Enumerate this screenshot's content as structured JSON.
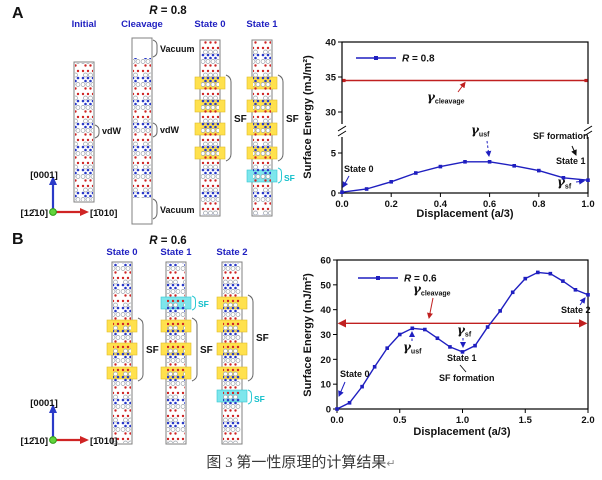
{
  "colors": {
    "accent_blue": "#1f1fc0",
    "accent_red": "#c02020",
    "band_yellow": "#ffe14d",
    "band_cyan": "#7de6ec",
    "atom_red": "#cf2424",
    "atom_blue": "#2a3ac8"
  },
  "panel_a": {
    "label": "A",
    "title": {
      "var": "R",
      "eq": " = 0.8"
    },
    "columns": [
      {
        "name": "Initial"
      },
      {
        "name": "Cleavage"
      },
      {
        "name": "State 0"
      },
      {
        "name": "State 1"
      }
    ],
    "labels": {
      "vacuum_top": "Vacuum",
      "vacuum_bottom": "Vacuum",
      "vdw_initial": "vdW",
      "vdw_cleavage": "vdW",
      "sf_state0": "SF",
      "sf_state1": "SF",
      "sf_basal_state1": "SF"
    },
    "axes": {
      "vertical": "[0001]",
      "horizontal": "[1̄010]",
      "normal": "[12̄10]"
    }
  },
  "panel_b": {
    "label": "B",
    "title": {
      "var": "R",
      "eq": " = 0.6"
    },
    "columns": [
      {
        "name": "State 0"
      },
      {
        "name": "State 1"
      },
      {
        "name": "State 2"
      }
    ],
    "labels": {
      "sf_state0": "SF",
      "sf_state1": "SF",
      "sf_basal_state1": "SF",
      "sf_state2": "SF",
      "sf_basal_state2": "SF"
    },
    "axes": {
      "vertical": "[0001]",
      "horizontal": "[1̄010]",
      "normal": "[12̄10]"
    }
  },
  "caption": {
    "text": "图 3 第一性原理的计算结果",
    "mark": "↵"
  },
  "chart_data": [
    {
      "id": "chartA",
      "type": "line",
      "legend": {
        "var": "R",
        "eq": " = 0.8"
      },
      "xlabel": "Displacement (a/3)",
      "ylabel": "Surface Energy (mJ/m²)",
      "x": [
        0,
        0.1,
        0.2,
        0.3,
        0.4,
        0.5,
        0.6,
        0.7,
        0.8,
        0.9,
        1.0
      ],
      "series": [
        {
          "name": "R = 0.8",
          "color": "#1f1fc0",
          "values": [
            0.1,
            0.5,
            1.4,
            2.5,
            3.3,
            3.9,
            3.9,
            3.4,
            2.8,
            1.9,
            1.6
          ]
        }
      ],
      "cleavage_line": {
        "value": 34.5,
        "color": "#c02020",
        "label": {
          "base": "γ",
          "sub": "cleavage"
        }
      },
      "xlim": [
        0,
        1
      ],
      "x_tick_labels": [
        "0.0",
        "0.2",
        "0.4",
        "0.6",
        "0.8",
        "1.0"
      ],
      "y_axis": {
        "broken": true,
        "lower_ticks": [
          "0",
          "5"
        ],
        "upper_ticks": [
          "30",
          "35",
          "40"
        ]
      },
      "annotations": [
        {
          "id": "state0",
          "text": "State 0"
        },
        {
          "id": "gamma_usf",
          "base": "γ",
          "sub": "usf"
        },
        {
          "id": "sf_formation",
          "text": "SF formation"
        },
        {
          "id": "state1",
          "text": "State 1"
        },
        {
          "id": "gamma_sf",
          "base": "γ",
          "sub": "sf"
        }
      ]
    },
    {
      "id": "chartB",
      "type": "line",
      "legend": {
        "var": "R",
        "eq": " = 0.6"
      },
      "xlabel": "Displacement (a/3)",
      "ylabel": "Surface Energy (mJ/m²)",
      "x": [
        0,
        0.1,
        0.2,
        0.3,
        0.4,
        0.5,
        0.6,
        0.7,
        0.8,
        0.9,
        1.0,
        1.1,
        1.2,
        1.3,
        1.4,
        1.5,
        1.6,
        1.7,
        1.8,
        1.9,
        2.0
      ],
      "series": [
        {
          "name": "R = 0.6",
          "color": "#1f1fc0",
          "values": [
            0,
            2.5,
            9,
            17,
            24.5,
            30,
            32.5,
            32,
            28.5,
            25,
            23,
            25.5,
            33,
            39.5,
            47,
            52.5,
            55,
            54.5,
            51.5,
            48,
            46
          ]
        }
      ],
      "cleavage_line": {
        "value": 34.5,
        "color": "#c02020",
        "label": {
          "base": "γ",
          "sub": "cleavage"
        }
      },
      "xlim": [
        0,
        2
      ],
      "ylim": [
        0,
        60
      ],
      "x_tick_labels": [
        "0.0",
        "0.5",
        "1.0",
        "1.5",
        "2.0"
      ],
      "y_tick_labels": [
        "0",
        "10",
        "20",
        "30",
        "40",
        "50",
        "60"
      ],
      "annotations": [
        {
          "id": "state0",
          "text": "State 0"
        },
        {
          "id": "gamma_usf",
          "base": "γ",
          "sub": "usf"
        },
        {
          "id": "gamma_sf",
          "base": "γ",
          "sub": "sf"
        },
        {
          "id": "state1",
          "text": "State 1"
        },
        {
          "id": "sf_formation",
          "text": "SF formation"
        },
        {
          "id": "state2",
          "text": "State 2"
        }
      ]
    }
  ]
}
